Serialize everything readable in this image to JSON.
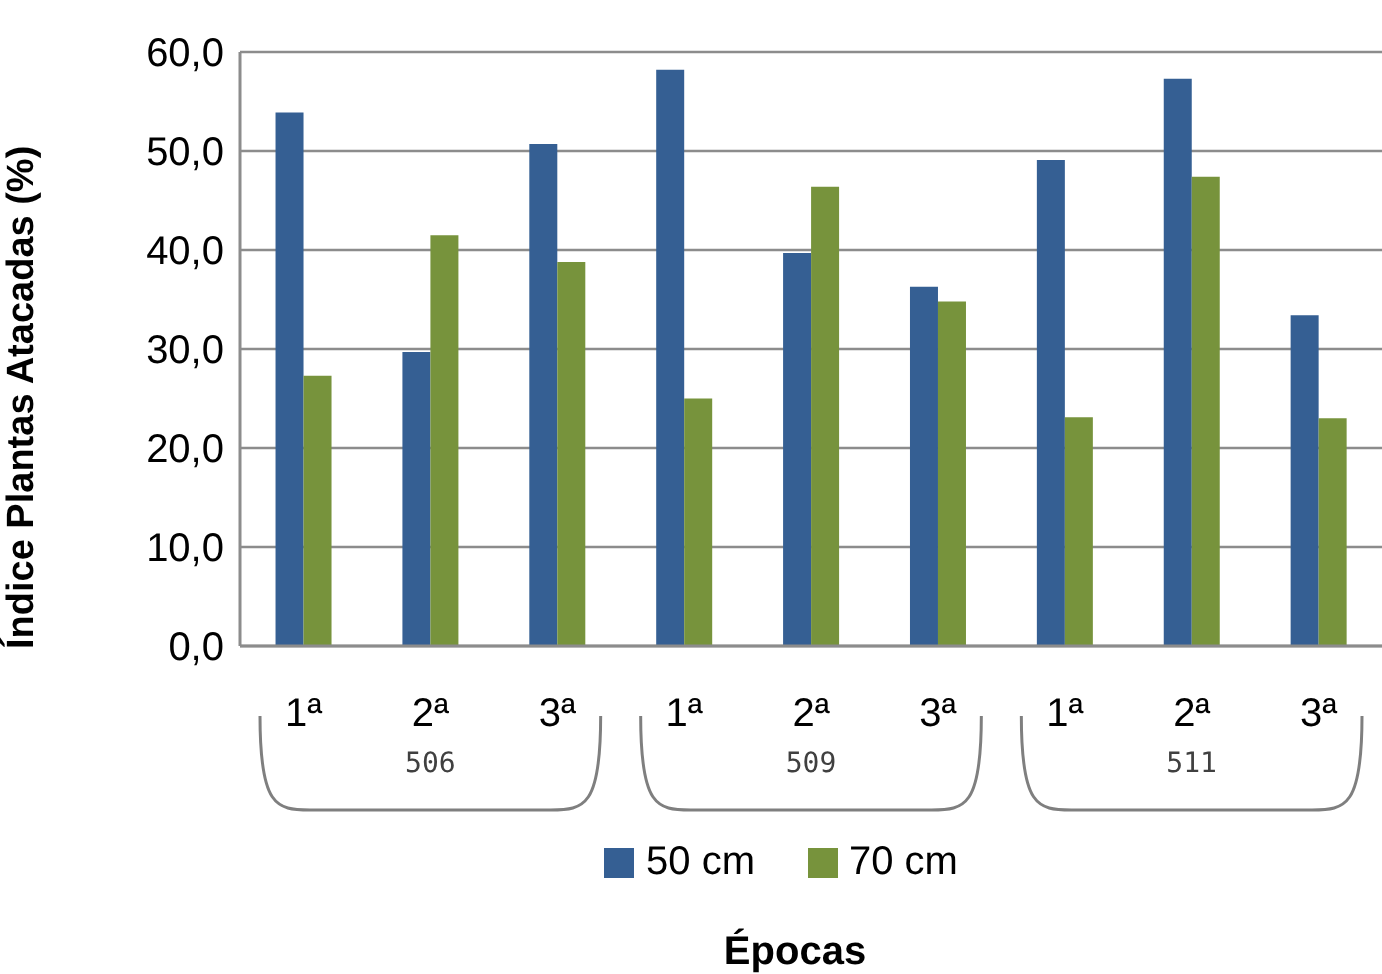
{
  "chart_data": {
    "type": "bar",
    "ylabel": "Índice Plantas Atacadas (%)",
    "xlabel": "Épocas",
    "categories": [
      "1ª",
      "2ª",
      "3ª",
      "1ª",
      "2ª",
      "3ª",
      "1ª",
      "2ª",
      "3ª"
    ],
    "annotations": [
      "506",
      "509",
      "511"
    ],
    "series": [
      {
        "name": "50 cm",
        "color": "#355f93",
        "values": [
          53.9,
          29.7,
          50.7,
          58.2,
          39.7,
          36.3,
          49.1,
          57.3,
          33.4
        ]
      },
      {
        "name": "70 cm",
        "color": "#77933c",
        "values": [
          27.3,
          41.5,
          38.8,
          25.0,
          46.4,
          34.8,
          23.1,
          47.4,
          23.0
        ]
      }
    ],
    "ylim": [
      0,
      60
    ],
    "yticks": [
      {
        "value": 0,
        "label": "0,0"
      },
      {
        "value": 10,
        "label": "10,0"
      },
      {
        "value": 20,
        "label": "20,0"
      },
      {
        "value": 30,
        "label": "30,0"
      },
      {
        "value": 40,
        "label": "40,0"
      },
      {
        "value": 50,
        "label": "50,0"
      },
      {
        "value": 60,
        "label": "60,0"
      }
    ],
    "grid": "y",
    "legend": "bottom"
  }
}
